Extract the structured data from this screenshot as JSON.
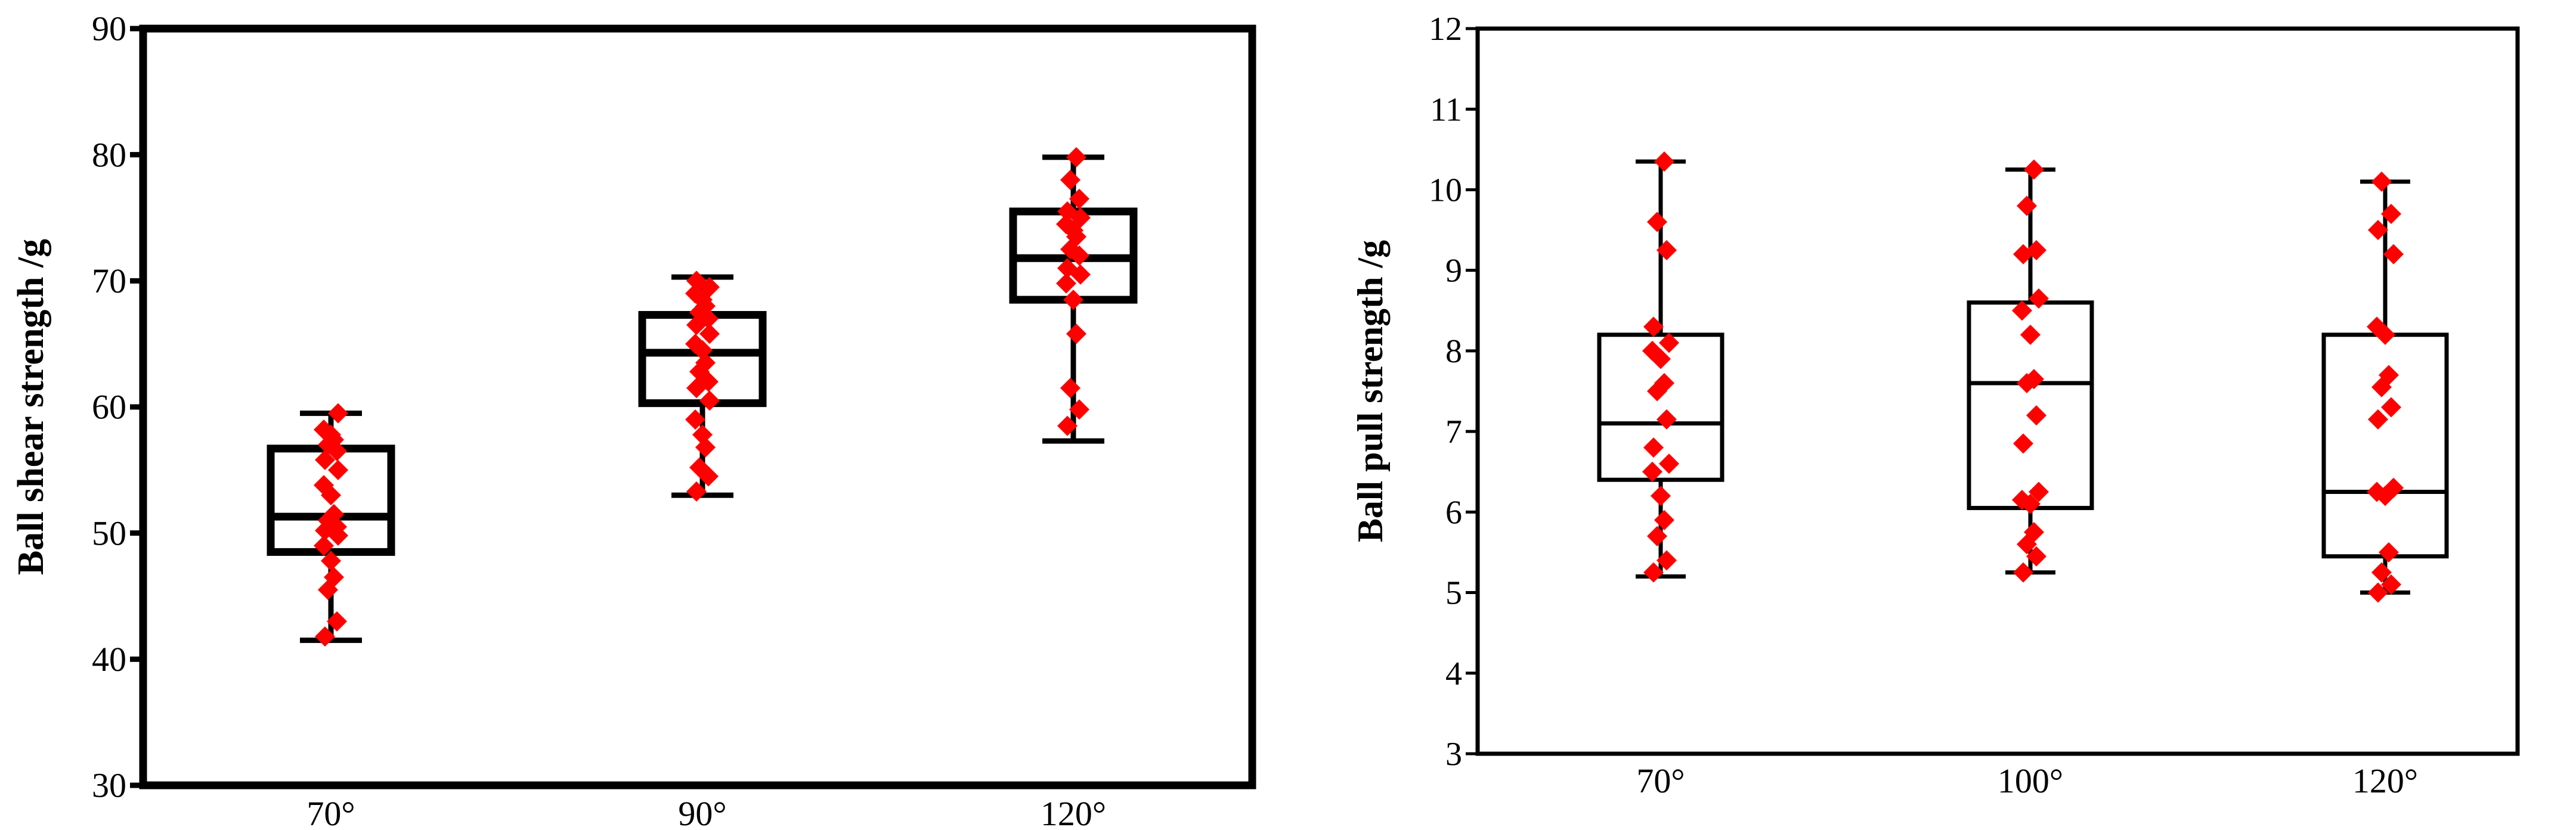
{
  "chart_data": [
    {
      "type": "box",
      "xlabel": "",
      "ylabel": "Ball shear strength /g",
      "ylim": [
        30,
        90
      ],
      "yticks": [
        30,
        40,
        50,
        60,
        70,
        80,
        90
      ],
      "categories": [
        "70°",
        "90°",
        "120°"
      ],
      "boxes": [
        {
          "min": 41.5,
          "q1": 48.5,
          "median": 51.3,
          "q3": 56.7,
          "max": 59.5
        },
        {
          "min": 53.0,
          "q1": 60.3,
          "median": 64.3,
          "q3": 67.3,
          "max": 70.3
        },
        {
          "min": 57.3,
          "q1": 68.5,
          "median": 71.8,
          "q3": 75.5,
          "max": 79.8
        }
      ],
      "points": [
        [
          41.8,
          43.0,
          45.5,
          46.5,
          47.8,
          49.0,
          49.8,
          50.2,
          50.5,
          51.0,
          51.5,
          53.0,
          53.8,
          55.0,
          55.8,
          56.5,
          57.0,
          57.4,
          57.8,
          58.2,
          59.5
        ],
        [
          53.3,
          54.5,
          55.2,
          56.8,
          57.8,
          59.0,
          60.5,
          61.5,
          62.0,
          62.8,
          63.5,
          64.5,
          65.0,
          65.8,
          66.5,
          67.0,
          67.5,
          68.0,
          68.5,
          69.0,
          69.5,
          70.0
        ],
        [
          58.5,
          59.8,
          61.5,
          65.8,
          68.5,
          69.8,
          70.5,
          71.0,
          72.0,
          72.5,
          73.5,
          74.0,
          74.5,
          75.0,
          75.5,
          76.5,
          78.0,
          79.8
        ]
      ],
      "box_stroke": "#000000",
      "point_color": "#ff0000",
      "grid": false
    },
    {
      "type": "box",
      "xlabel": "",
      "ylabel": "Ball pull strength /g",
      "ylim": [
        3,
        12
      ],
      "yticks": [
        3,
        4,
        5,
        6,
        7,
        8,
        9,
        10,
        11,
        12
      ],
      "categories": [
        "70°",
        "100°",
        "120°"
      ],
      "boxes": [
        {
          "min": 5.2,
          "q1": 6.4,
          "median": 7.1,
          "q3": 8.2,
          "max": 10.35
        },
        {
          "min": 5.25,
          "q1": 6.05,
          "median": 7.6,
          "q3": 8.6,
          "max": 10.25
        },
        {
          "min": 5.0,
          "q1": 5.45,
          "median": 6.25,
          "q3": 8.2,
          "max": 10.1
        }
      ],
      "points": [
        [
          5.25,
          5.4,
          5.7,
          5.9,
          6.2,
          6.5,
          6.6,
          6.8,
          7.15,
          7.5,
          7.6,
          7.9,
          8.0,
          8.1,
          8.3,
          9.25,
          9.6,
          10.35
        ],
        [
          5.25,
          5.45,
          5.6,
          5.75,
          6.1,
          6.15,
          6.25,
          6.85,
          7.2,
          7.6,
          7.65,
          8.2,
          8.5,
          8.65,
          9.2,
          9.25,
          9.8,
          10.25
        ],
        [
          5.0,
          5.1,
          5.25,
          5.5,
          6.2,
          6.25,
          6.3,
          7.15,
          7.3,
          7.55,
          7.7,
          8.2,
          8.3,
          9.2,
          9.5,
          9.7,
          10.1
        ]
      ],
      "box_stroke": "#000000",
      "point_color": "#ff0000",
      "grid": false
    }
  ]
}
